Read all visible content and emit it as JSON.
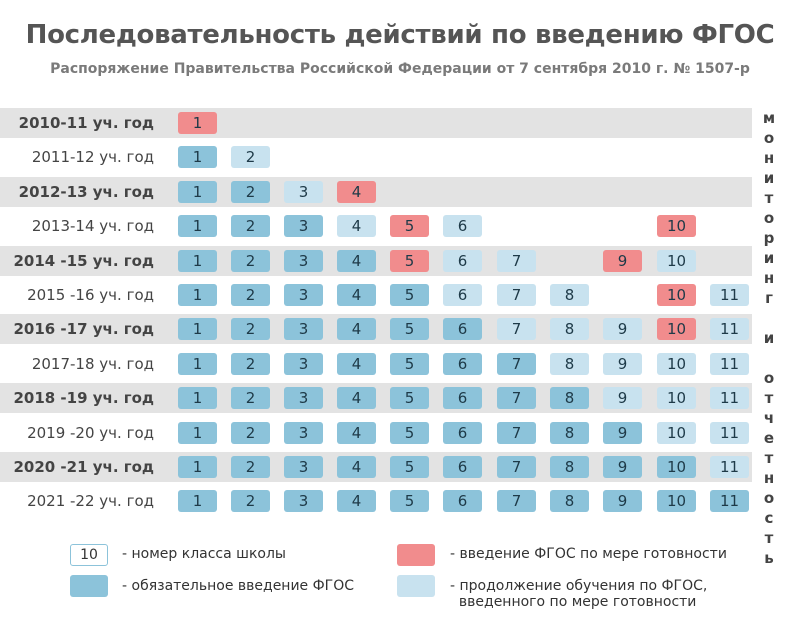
{
  "title": "Последовательность действий по введению ФГОС",
  "subtitle": "Распоряжение Правительства Российской Федерации от 7 сентября 2010 г. № 1507-р",
  "side_label": "мониторинг\nи\nотчетность",
  "colors": {
    "mandatory": "#8cc3da",
    "intro": "#f18c8d",
    "continuation": "#c8e2ef",
    "outline_border": "#8cc3da",
    "row_shade": "#e3e3e3"
  },
  "chart_data": {
    "type": "table",
    "columns": [
      "1",
      "2",
      "3",
      "4",
      "5",
      "6",
      "7",
      "8",
      "9",
      "10",
      "11"
    ],
    "rows": [
      {
        "year": "2010-11 уч. год",
        "cells": [
          "I"
        ]
      },
      {
        "year": "2011-12 уч. год",
        "cells": [
          "M",
          "C"
        ]
      },
      {
        "year": "2012-13 уч. год",
        "cells": [
          "M",
          "M",
          "C",
          "I"
        ]
      },
      {
        "year": "2013-14 уч. год",
        "cells": [
          "M",
          "M",
          "M",
          "C",
          "I",
          "C",
          "",
          "",
          "",
          "I"
        ]
      },
      {
        "year": "2014 -15 уч. год",
        "cells": [
          "M",
          "M",
          "M",
          "M",
          "I",
          "C",
          "C",
          "",
          "I",
          "C"
        ]
      },
      {
        "year": "2015 -16 уч. год",
        "cells": [
          "M",
          "M",
          "M",
          "M",
          "M",
          "C",
          "C",
          "C",
          "",
          "I",
          "C"
        ]
      },
      {
        "year": "2016 -17 уч. год",
        "cells": [
          "M",
          "M",
          "M",
          "M",
          "M",
          "M",
          "C",
          "C",
          "C",
          "I",
          "C"
        ]
      },
      {
        "year": "2017-18 уч. год",
        "cells": [
          "M",
          "M",
          "M",
          "M",
          "M",
          "M",
          "M",
          "C",
          "C",
          "C",
          "C"
        ]
      },
      {
        "year": "2018 -19 уч. год",
        "cells": [
          "M",
          "M",
          "M",
          "M",
          "M",
          "M",
          "M",
          "M",
          "C",
          "C",
          "C"
        ]
      },
      {
        "year": "2019 -20 уч. год",
        "cells": [
          "M",
          "M",
          "M",
          "M",
          "M",
          "M",
          "M",
          "M",
          "M",
          "C",
          "C"
        ]
      },
      {
        "year": "2020 -21 уч. год",
        "cells": [
          "M",
          "M",
          "M",
          "M",
          "M",
          "M",
          "M",
          "M",
          "M",
          "M",
          "C"
        ]
      },
      {
        "year": "2021 -22 уч. год",
        "cells": [
          "M",
          "M",
          "M",
          "M",
          "M",
          "M",
          "M",
          "M",
          "M",
          "M",
          "M"
        ]
      }
    ],
    "cell_codes": {
      "M": "mandatory",
      "I": "intro",
      "C": "continuation"
    }
  },
  "legend": [
    {
      "kind": "outline",
      "sample": "10",
      "text": "- номер класса школы"
    },
    {
      "kind": "intro",
      "text": "- введение ФГОС по мере готовности"
    },
    {
      "kind": "mandatory",
      "text": "- обязательное введение ФГОС"
    },
    {
      "kind": "continuation",
      "text": "- продолжение обучения по ФГОС,\n  введенного по мере готовности"
    }
  ]
}
